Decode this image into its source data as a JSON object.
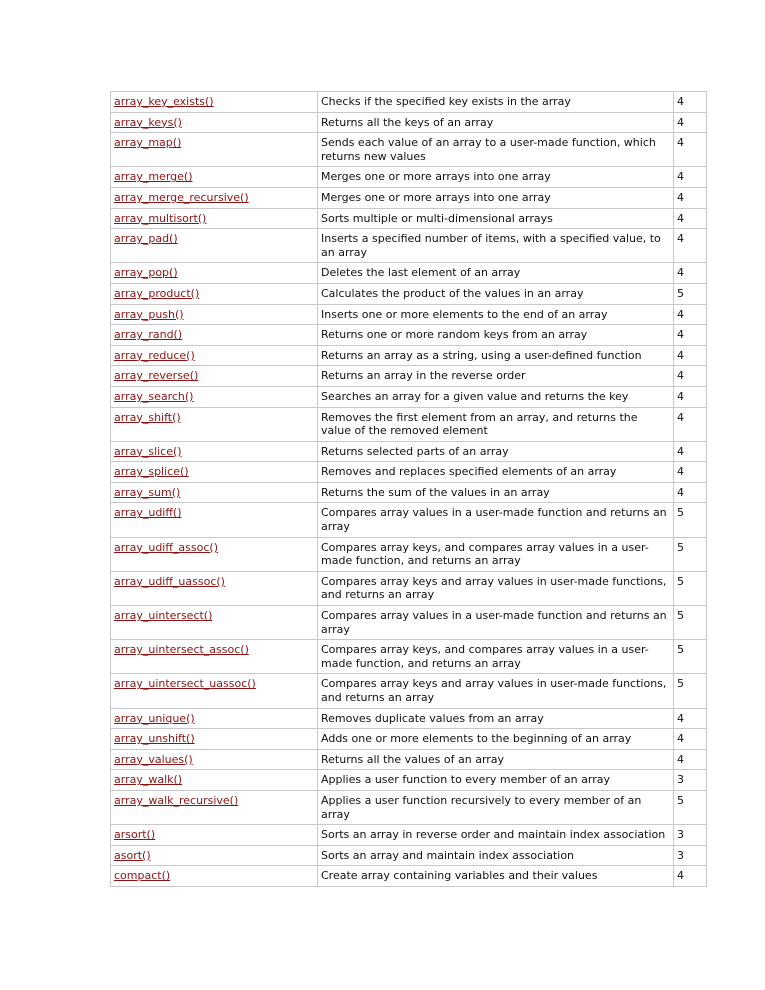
{
  "table": {
    "rows": [
      [
        "array_key_exists()",
        "Checks if the specified key exists in the array",
        "4"
      ],
      [
        "array_keys()",
        "Returns all the keys of an array",
        "4"
      ],
      [
        "array_map()",
        "Sends each value of an array to a user-made function, which returns new values",
        "4"
      ],
      [
        "array_merge()",
        "Merges one or more arrays into one array",
        "4"
      ],
      [
        "array_merge_recursive()",
        "Merges one or more arrays into one array",
        "4"
      ],
      [
        "array_multisort()",
        "Sorts multiple or multi-dimensional arrays",
        "4"
      ],
      [
        "array_pad()",
        "Inserts a specified number of items, with a specified value, to an array",
        "4"
      ],
      [
        "array_pop()",
        "Deletes the last element of an array",
        "4"
      ],
      [
        "array_product()",
        "Calculates the product of the values in an array",
        "5"
      ],
      [
        "array_push()",
        "Inserts one or more elements to the end of an array",
        "4"
      ],
      [
        "array_rand()",
        "Returns one or more random keys from an array",
        "4"
      ],
      [
        "array_reduce()",
        "Returns an array as a string, using a user-defined function",
        "4"
      ],
      [
        "array_reverse()",
        "Returns an array in the reverse order",
        "4"
      ],
      [
        "array_search()",
        "Searches an array for a given value and returns the key",
        "4"
      ],
      [
        "array_shift()",
        "Removes the first element from an array, and returns the value of the removed element",
        "4"
      ],
      [
        "array_slice()",
        "Returns selected parts of an array",
        "4"
      ],
      [
        "array_splice()",
        "Removes and replaces specified elements of an array",
        "4"
      ],
      [
        "array_sum()",
        "Returns the sum of the values in an array",
        "4"
      ],
      [
        "array_udiff()",
        "Compares array values in a user-made function and returns an array",
        "5"
      ],
      [
        "array_udiff_assoc()",
        "Compares array keys, and compares array values in a user-made function, and returns an array",
        "5"
      ],
      [
        "array_udiff_uassoc()",
        "Compares array keys and array values in user-made functions, and returns an array",
        "5"
      ],
      [
        "array_uintersect()",
        "Compares array values in a user-made function and returns an array",
        "5"
      ],
      [
        "array_uintersect_assoc()",
        "Compares array keys, and compares array values in a user-made function, and returns an array",
        "5"
      ],
      [
        "array_uintersect_uassoc()",
        "Compares array keys and array values in user-made functions, and returns an array",
        "5"
      ],
      [
        "array_unique()",
        "Removes duplicate values from an array",
        "4"
      ],
      [
        "array_unshift()",
        "Adds one or more elements to the beginning of an array",
        "4"
      ],
      [
        "array_values()",
        "Returns all the values of an array",
        "4"
      ],
      [
        "array_walk()",
        "Applies a user function to every member of an array",
        "3"
      ],
      [
        "array_walk_recursive()",
        "Applies a user function recursively to every member of an array",
        "5"
      ],
      [
        "arsort()",
        "Sorts an array in reverse order and maintain index association",
        "3"
      ],
      [
        "asort()",
        "Sorts an array and maintain index association",
        "3"
      ],
      [
        "compact()",
        "Create array containing variables and their values",
        "4"
      ]
    ]
  }
}
